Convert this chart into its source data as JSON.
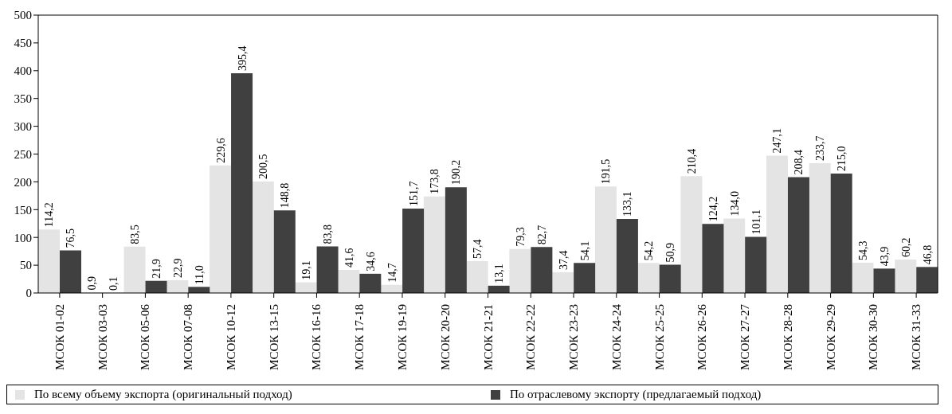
{
  "chart_data": {
    "type": "bar",
    "categories": [
      "МСОК 01-02",
      "МСОК 03-03",
      "МСОК 05-06",
      "МСОК 07-08",
      "МСОК 10-12",
      "МСОК 13-15",
      "МСОК 16-16",
      "МСОК 17-18",
      "МСОК 19-19",
      "МСОК 20-20",
      "МСОК 21-21",
      "МСОК 22-22",
      "МСОК 23-23",
      "МСОК 24-24",
      "МСОК 25-25",
      "МСОК 26-26",
      "МСОК 27-27",
      "МСОК 28-28",
      "МСОК 29-29",
      "МСОК 30-30",
      "МСОК 31-33"
    ],
    "series": [
      {
        "name": "По всему объему экспорта (оригинальный подход)",
        "color": "#e4e4e4",
        "values": [
          114.2,
          0.9,
          83.5,
          22.9,
          229.6,
          200.5,
          19.1,
          41.6,
          14.7,
          173.8,
          57.4,
          79.3,
          37.4,
          191.5,
          54.2,
          210.4,
          134.0,
          247.1,
          233.7,
          54.3,
          60.2
        ],
        "value_labels": [
          "114,2",
          "0,9",
          "83,5",
          "22,9",
          "229,6",
          "200,5",
          "19,1",
          "41,6",
          "14,7",
          "173,8",
          "57,4",
          "79,3",
          "37,4",
          "191,5",
          "54,2",
          "210,4",
          "134,0",
          "247,1",
          "233,7",
          "54,3",
          "60,2"
        ]
      },
      {
        "name": "По отраслевому экспорту (предлагаемый подход)",
        "color": "#404040",
        "values": [
          76.5,
          0.1,
          21.9,
          11.0,
          395.4,
          148.8,
          83.8,
          34.6,
          151.7,
          190.2,
          13.1,
          82.7,
          54.1,
          133.1,
          50.9,
          124.2,
          101.1,
          208.4,
          215.0,
          43.9,
          46.8
        ],
        "value_labels": [
          "76,5",
          "0,1",
          "21,9",
          "11,0",
          "395,4",
          "148,8",
          "83,8",
          "34,6",
          "151,7",
          "190,2",
          "13,1",
          "82,7",
          "54,1",
          "133,1",
          "50,9",
          "124,2",
          "101,1",
          "208,4",
          "215,0",
          "43,9",
          "46,8"
        ]
      }
    ],
    "ylim": [
      0,
      500
    ],
    "yticks": [
      0,
      50,
      100,
      150,
      200,
      250,
      300,
      350,
      400,
      450,
      500
    ],
    "grid": false,
    "legend": "bottom"
  }
}
